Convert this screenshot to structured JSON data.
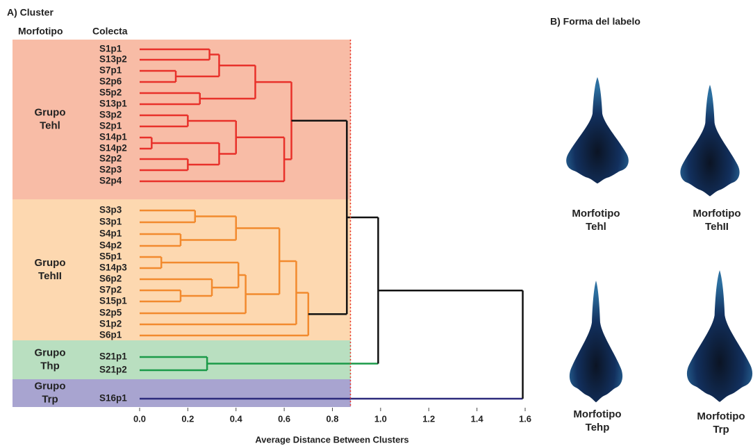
{
  "chart_data": {
    "type": "dendrogram",
    "title": "A) Cluster",
    "column_headers": [
      "Morfotipo",
      "Colecta"
    ],
    "xlabel": "Average Distance Between Clusters",
    "xlim": [
      0,
      1.6
    ],
    "xticks": [
      {
        "value": 0,
        "label": "0.0"
      },
      0.2,
      0.4,
      0.6,
      0.8,
      {
        "value": 1,
        "label": "1.0"
      },
      1.2,
      1.4,
      1.6
    ],
    "cutoff": 0.875,
    "cutoff_color": "#e8312a",
    "groups": [
      {
        "label": [
          "Grupo",
          "Tehl"
        ],
        "color": "#f8bca6"
      },
      {
        "label": [
          "Grupo",
          "TehII"
        ],
        "color": "#fdd8b0"
      },
      {
        "label": [
          "Grupo",
          "Thp"
        ],
        "color": "#b9dfc0"
      },
      {
        "label": [
          "Grupo",
          "Trp"
        ],
        "color": "#a8a4d0"
      }
    ],
    "tree": {
      "height": 1.59,
      "color": "#111111",
      "children": [
        {
          "height": 0.99,
          "color": "#111111",
          "children": [
            {
              "height": 0.86,
              "color": "#111111",
              "children": [
                {
                  "height": 0.63,
                  "color": "#e8312a",
                  "children": [
                    {
                      "height": 0.48,
                      "color": "#e8312a",
                      "children": [
                        {
                          "height": 0.33,
                          "color": "#e8312a",
                          "children": [
                            {
                              "height": 0.29,
                              "color": "#e8312a",
                              "children": [
                                {
                                  "label": "S1p1"
                                },
                                {
                                  "label": "S13p2"
                                }
                              ]
                            },
                            {
                              "height": 0.15,
                              "color": "#e8312a",
                              "children": [
                                {
                                  "label": "S7p1"
                                },
                                {
                                  "label": "S2p6"
                                }
                              ]
                            }
                          ]
                        },
                        {
                          "height": 0.25,
                          "color": "#e8312a",
                          "children": [
                            {
                              "label": "S5p2"
                            },
                            {
                              "label": "S13p1"
                            }
                          ]
                        }
                      ]
                    },
                    {
                      "height": 0.6,
                      "color": "#e8312a",
                      "children": [
                        {
                          "height": 0.4,
                          "color": "#e8312a",
                          "children": [
                            {
                              "height": 0.2,
                              "color": "#e8312a",
                              "children": [
                                {
                                  "label": "S3p2"
                                },
                                {
                                  "label": "S2p1"
                                }
                              ]
                            },
                            {
                              "height": 0.33,
                              "color": "#e8312a",
                              "children": [
                                {
                                  "height": 0.05,
                                  "color": "#e8312a",
                                  "children": [
                                    {
                                      "label": "S14p1"
                                    },
                                    {
                                      "label": "S14p2"
                                    }
                                  ]
                                },
                                {
                                  "height": 0.2,
                                  "color": "#e8312a",
                                  "children": [
                                    {
                                      "label": "S2p2"
                                    },
                                    {
                                      "label": "S2p3"
                                    }
                                  ]
                                }
                              ]
                            }
                          ]
                        },
                        {
                          "label": "S2p4"
                        }
                      ]
                    }
                  ]
                },
                {
                  "height": 0.7,
                  "color": "#f28a2e",
                  "children": [
                    {
                      "height": 0.65,
                      "color": "#f28a2e",
                      "children": [
                        {
                          "height": 0.58,
                          "color": "#f28a2e",
                          "children": [
                            {
                              "height": 0.4,
                              "color": "#f28a2e",
                              "children": [
                                {
                                  "height": 0.23,
                                  "color": "#f28a2e",
                                  "children": [
                                    {
                                      "label": "S3p3"
                                    },
                                    {
                                      "label": "S3p1"
                                    }
                                  ]
                                },
                                {
                                  "height": 0.17,
                                  "color": "#f28a2e",
                                  "children": [
                                    {
                                      "label": "S4p1"
                                    },
                                    {
                                      "label": "S4p2"
                                    }
                                  ]
                                }
                              ]
                            },
                            {
                              "height": 0.44,
                              "color": "#f28a2e",
                              "children": [
                                {
                                  "height": 0.41,
                                  "color": "#f28a2e",
                                  "children": [
                                    {
                                      "height": 0.09,
                                      "color": "#f28a2e",
                                      "children": [
                                        {
                                          "label": "S5p1"
                                        },
                                        {
                                          "label": "S14p3"
                                        }
                                      ]
                                    },
                                    {
                                      "height": 0.3,
                                      "color": "#f28a2e",
                                      "children": [
                                        {
                                          "label": "S6p2"
                                        },
                                        {
                                          "height": 0.17,
                                          "color": "#f28a2e",
                                          "children": [
                                            {
                                              "label": "S7p2"
                                            },
                                            {
                                              "label": "S15p1"
                                            }
                                          ]
                                        }
                                      ]
                                    }
                                  ]
                                },
                                {
                                  "label": "S2p5"
                                }
                              ]
                            }
                          ]
                        },
                        {
                          "label": "S1p2"
                        }
                      ]
                    },
                    {
                      "label": "S6p1"
                    }
                  ]
                }
              ]
            },
            {
              "height": 0.28,
              "color": "#1a9a48",
              "link_color": "#1a9a48",
              "children": [
                {
                  "label": "S21p1"
                },
                {
                  "label": "S21p2"
                }
              ]
            }
          ]
        },
        {
          "label": "S16p1",
          "link_color": "#2c2a7c"
        }
      ]
    }
  },
  "panel_b": {
    "title": "B) Forma del labelo",
    "items": [
      {
        "label": [
          "Morfotipo",
          "Tehl"
        ]
      },
      {
        "label": [
          "Morfotipo",
          "TehII"
        ]
      },
      {
        "label": [
          "Morfotipo",
          "Tehp"
        ]
      },
      {
        "label": [
          "Morfotipo",
          "Trp"
        ]
      }
    ]
  }
}
